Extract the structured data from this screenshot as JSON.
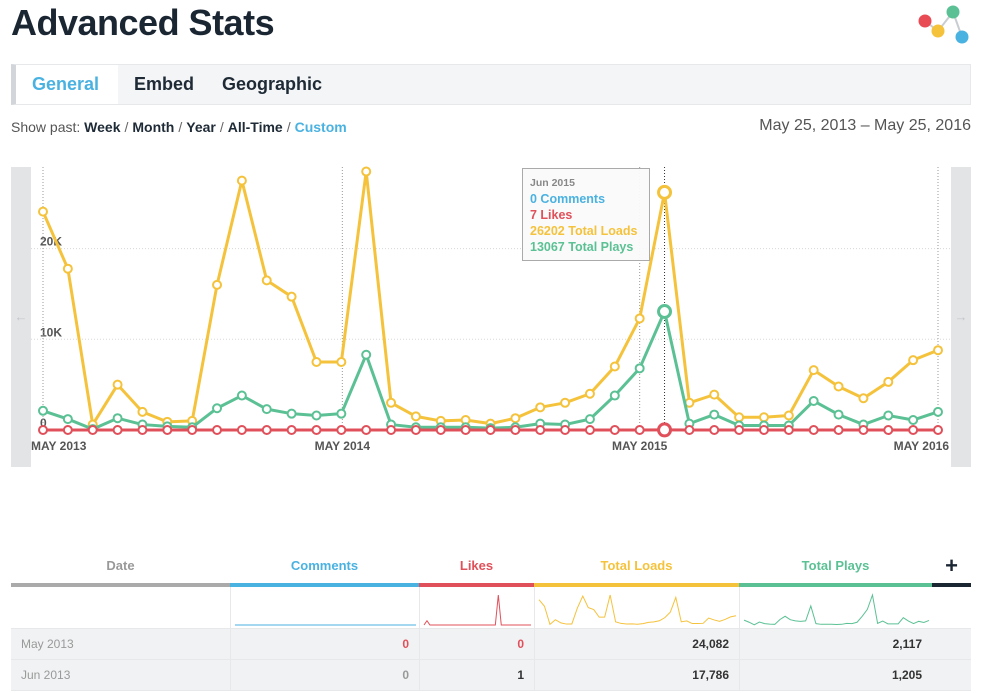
{
  "page": {
    "title": "Advanced Stats"
  },
  "tabs": [
    {
      "label": "General",
      "active": true
    },
    {
      "label": "Embed",
      "active": false
    },
    {
      "label": "Geographic",
      "active": false
    }
  ],
  "filter": {
    "label": "Show past:",
    "options": [
      {
        "label": "Week",
        "active": false
      },
      {
        "label": "Month",
        "active": false
      },
      {
        "label": "Year",
        "active": false
      },
      {
        "label": "All-Time",
        "active": false
      },
      {
        "label": "Custom",
        "active": true
      }
    ]
  },
  "date_range": "May 25, 2013 – May 25, 2016",
  "nav": {
    "left_arrow": "←",
    "right_arrow": "→"
  },
  "colors": {
    "comments": "#4ab2e1",
    "likes": "#e0505a",
    "loads": "#f5c23c",
    "plays": "#5bc194",
    "accent": "#4ab2e1"
  },
  "tooltip": {
    "title": "Jun 2015",
    "comments": "0 Comments",
    "likes": "7 Likes",
    "loads": "26202 Total Loads",
    "plays": "13067 Total Plays",
    "index": 25
  },
  "chart_data": {
    "type": "line",
    "x": [
      "May 2013",
      "Jun 2013",
      "Jul 2013",
      "Aug 2013",
      "Sep 2013",
      "Oct 2013",
      "Nov 2013",
      "Dec 2013",
      "Jan 2014",
      "Feb 2014",
      "Mar 2014",
      "Apr 2014",
      "May 2014",
      "Jun 2014",
      "Jul 2014",
      "Aug 2014",
      "Sep 2014",
      "Oct 2014",
      "Nov 2014",
      "Dec 2014",
      "Jan 2015",
      "Feb 2015",
      "Mar 2015",
      "Apr 2015",
      "May 2015",
      "Jun 2015",
      "Jul 2015",
      "Aug 2015",
      "Sep 2015",
      "Oct 2015",
      "Nov 2015",
      "Dec 2015",
      "Jan 2016",
      "Feb 2016",
      "Mar 2016",
      "Apr 2016",
      "May 2016"
    ],
    "x_tick_labels": [
      "MAY 2013",
      "MAY 2014",
      "MAY 2015",
      "MAY 2016"
    ],
    "x_tick_index": [
      0,
      12,
      24,
      36
    ],
    "y_tick_labels": [
      "0",
      "10K",
      "20K"
    ],
    "y_tick_values": [
      0,
      10000,
      20000
    ],
    "ylim": [
      0,
      29000
    ],
    "grid": true,
    "series": [
      {
        "key": "loads",
        "values": [
          24082,
          17786,
          600,
          5000,
          2000,
          900,
          1000,
          16000,
          27500,
          16500,
          14700,
          7500,
          7500,
          28500,
          3000,
          1500,
          1000,
          1100,
          700,
          1300,
          2500,
          3000,
          4000,
          7000,
          12300,
          26202,
          3000,
          3900,
          1400,
          1400,
          1600,
          6600,
          4800,
          3500,
          5300,
          7700,
          8800
        ]
      },
      {
        "key": "plays",
        "values": [
          2117,
          1205,
          100,
          1300,
          600,
          400,
          300,
          2400,
          3800,
          2300,
          1800,
          1600,
          1800,
          8300,
          600,
          300,
          300,
          300,
          200,
          300,
          700,
          600,
          1200,
          3800,
          6800,
          13067,
          700,
          1700,
          500,
          500,
          500,
          3200,
          1700,
          600,
          1600,
          1100,
          2000
        ]
      },
      {
        "key": "likes",
        "values": [
          0,
          1,
          0,
          0,
          0,
          0,
          0,
          0,
          0,
          0,
          0,
          0,
          0,
          0,
          0,
          0,
          0,
          0,
          0,
          0,
          0,
          0,
          0,
          0,
          0,
          7,
          0,
          0,
          0,
          0,
          0,
          0,
          0,
          0,
          0,
          0,
          0
        ]
      }
    ]
  },
  "table": {
    "headers": {
      "date": "Date",
      "comments": "Comments",
      "likes": "Likes",
      "loads": "Total Loads",
      "plays": "Total Plays",
      "add": "+"
    },
    "rows": [
      {
        "date": "May 2013",
        "comments": "0",
        "likes": "0",
        "loads": "24,082",
        "plays": "2,117"
      },
      {
        "date": "Jun 2013",
        "comments": "0",
        "likes": "1",
        "loads": "17,786",
        "plays": "1,205"
      }
    ]
  }
}
